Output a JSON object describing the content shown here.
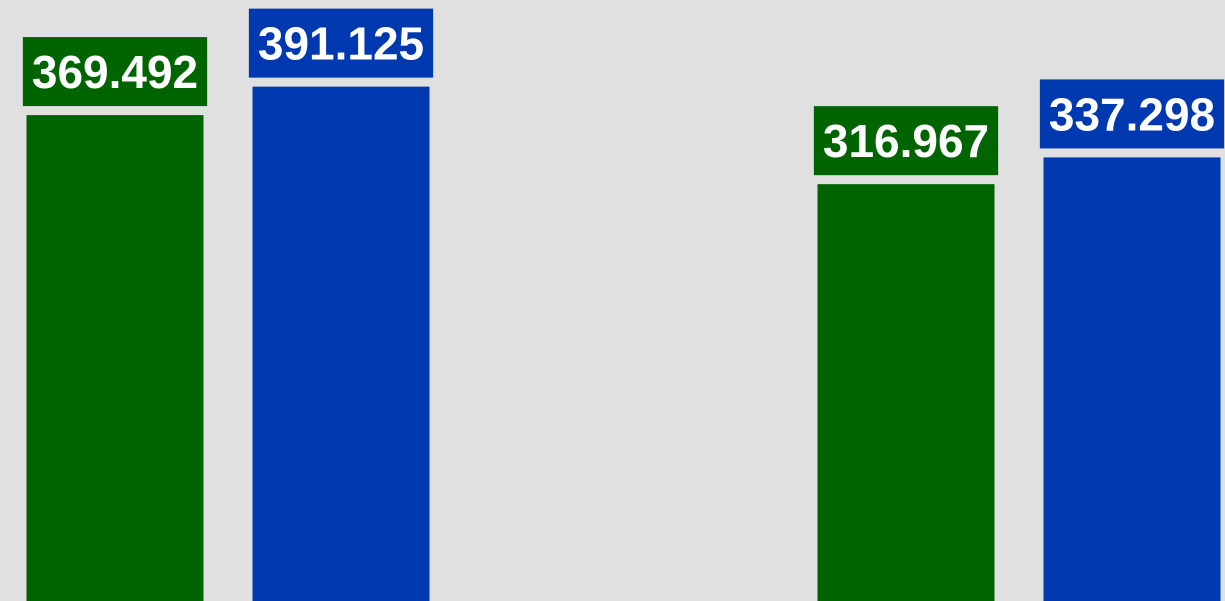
{
  "chart_data": {
    "type": "bar",
    "categories": [
      null,
      null
    ],
    "series": [
      {
        "color": "#006400",
        "values": [
          369.492,
          316.967
        ]
      },
      {
        "color": "#0038b0",
        "values": [
          391.125,
          337.298
        ]
      }
    ],
    "ylim": [
      0,
      457
    ]
  }
}
